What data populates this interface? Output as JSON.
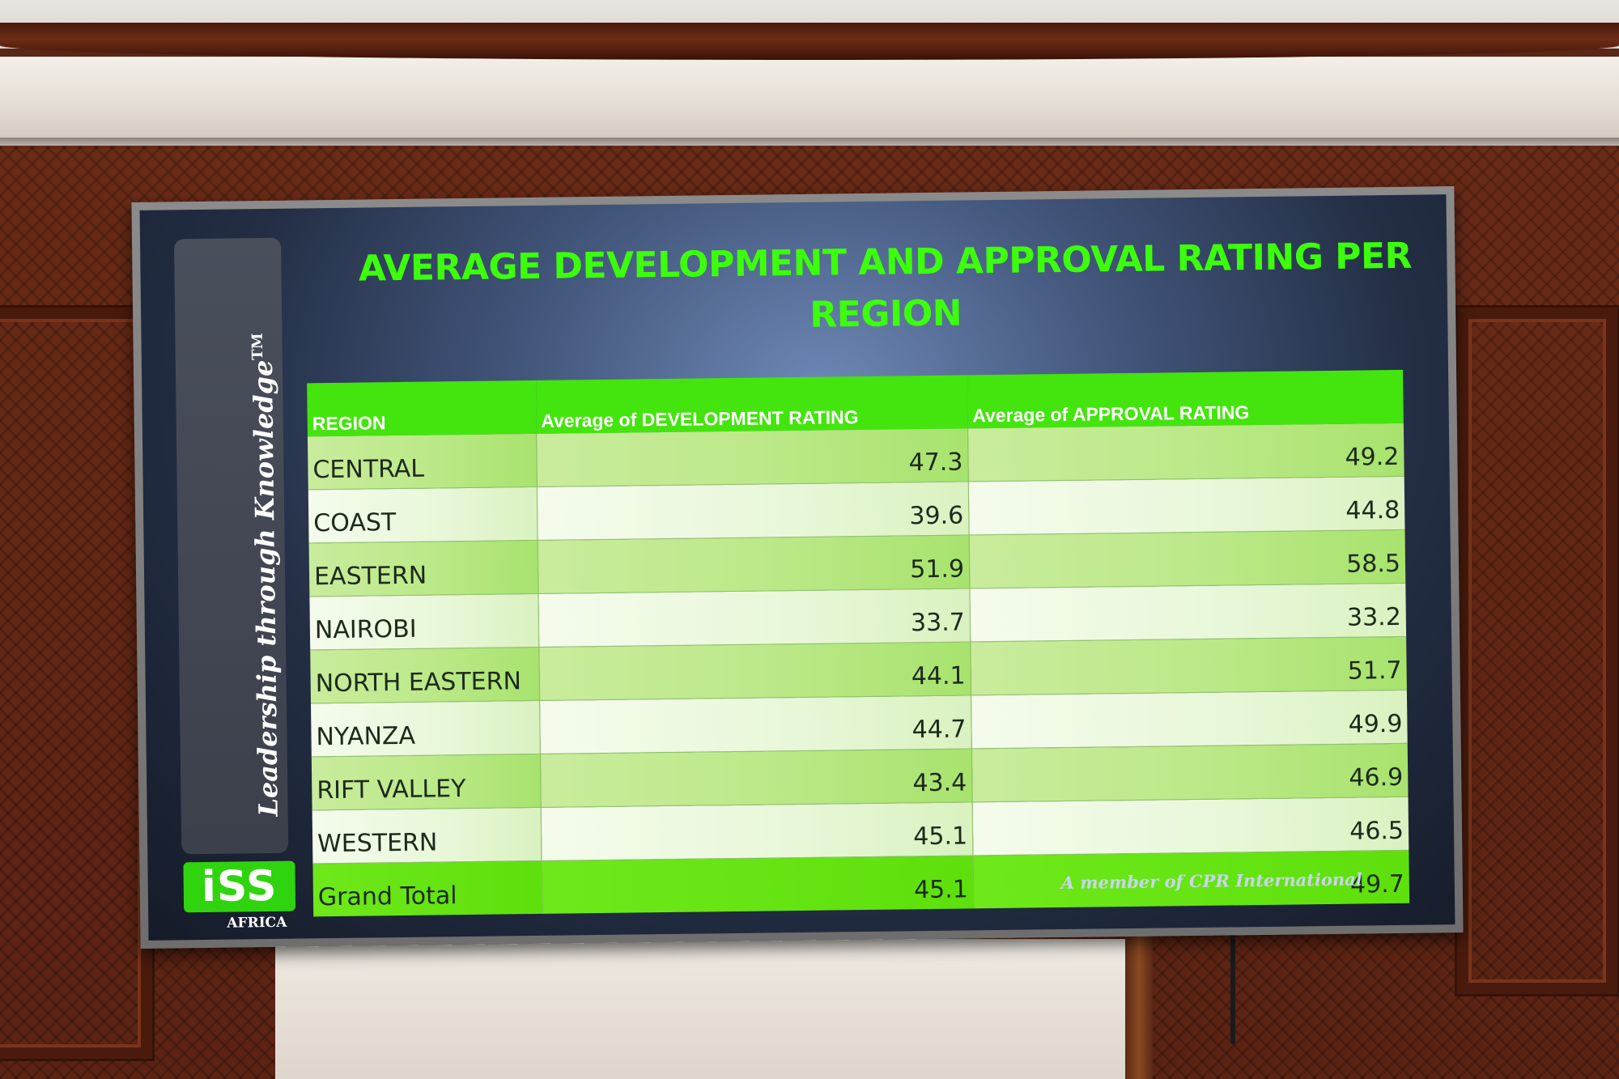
{
  "slide": {
    "title": "AVERAGE DEVELOPMENT AND APPROVAL RATING PER REGION",
    "tagline": "Leadership through Knowledge",
    "tagline_mark": "TM",
    "footer": "A member of CPR International",
    "logo": {
      "text": "iSS",
      "subtext": "AFRICA"
    },
    "colors": {
      "title": "#3cff0c",
      "header": "#44e40e",
      "total_row": "#5ee00c"
    }
  },
  "table": {
    "headers": [
      "REGION",
      "Average of DEVELOPMENT RATING",
      "Average of APPROVAL RATING"
    ],
    "rows": [
      {
        "region": "CENTRAL",
        "development": "47.3",
        "approval": "49.2"
      },
      {
        "region": "COAST",
        "development": "39.6",
        "approval": "44.8"
      },
      {
        "region": "EASTERN",
        "development": "51.9",
        "approval": "58.5"
      },
      {
        "region": "NAIROBI",
        "development": "33.7",
        "approval": "33.2"
      },
      {
        "region": "NORTH EASTERN",
        "development": "44.1",
        "approval": "51.7"
      },
      {
        "region": "NYANZA",
        "development": "44.7",
        "approval": "49.9"
      },
      {
        "region": "RIFT VALLEY",
        "development": "43.4",
        "approval": "46.9"
      },
      {
        "region": "WESTERN",
        "development": "45.1",
        "approval": "46.5"
      }
    ],
    "total": {
      "region": "Grand Total",
      "development": "45.1",
      "approval": "49.7"
    }
  }
}
